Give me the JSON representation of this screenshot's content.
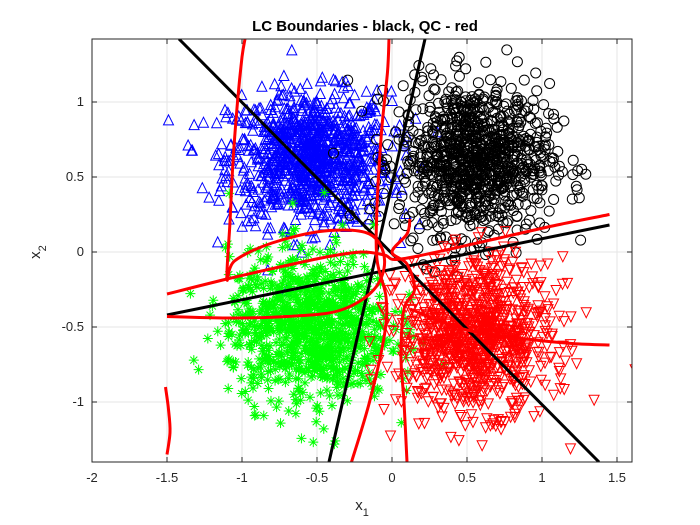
{
  "chart_data": {
    "type": "scatter",
    "title": "LC Boundaries - black, QC - red",
    "xlabel": {
      "base": "x",
      "sub": "1"
    },
    "ylabel": {
      "base": "x",
      "sub": "2"
    },
    "xlim": [
      -2,
      1.6
    ],
    "ylim": [
      -1.4,
      1.42
    ],
    "xticks": [
      -2,
      -1.5,
      -1,
      -0.5,
      0,
      0.5,
      1,
      1.5
    ],
    "xtick_labels": [
      "-2",
      "-1.5",
      "-1",
      "-0.5",
      "0",
      "0.5",
      "1",
      "1.5"
    ],
    "yticks": [
      -1,
      -0.5,
      0,
      0.5,
      1
    ],
    "ytick_labels": [
      "-1",
      "-0.5",
      "0",
      "0.5",
      "1"
    ],
    "grid": true,
    "series": [
      {
        "marker": "triangle-up",
        "color": "#0000ff",
        "center": [
          -0.55,
          0.62
        ],
        "spread": [
          0.27,
          0.22
        ],
        "n": 1000
      },
      {
        "marker": "circle",
        "color": "#000000",
        "center": [
          0.55,
          0.62
        ],
        "spread": [
          0.25,
          0.25
        ],
        "n": 1000
      },
      {
        "marker": "asterisk",
        "color": "#00ff00",
        "center": [
          -0.55,
          -0.5
        ],
        "spread": [
          0.27,
          0.25
        ],
        "n": 1000
      },
      {
        "marker": "triangle-down",
        "color": "#ff0000",
        "center": [
          0.55,
          -0.55
        ],
        "spread": [
          0.25,
          0.25
        ],
        "n": 1000
      }
    ],
    "lc_boundaries": {
      "color": "#000000",
      "lines": [
        [
          [
            -1.42,
            1.42
          ],
          [
            1.38,
            -1.4
          ]
        ],
        [
          [
            -0.42,
            -1.4
          ],
          [
            0.22,
            1.42
          ]
        ],
        [
          [
            -1.5,
            -0.42
          ],
          [
            1.45,
            0.18
          ]
        ]
      ]
    },
    "qc_boundaries": {
      "color": "#ff0000",
      "curves": [
        [
          [
            -1.5,
            -0.28
          ],
          [
            -1.1,
            -0.18
          ],
          [
            -0.75,
            -0.1
          ],
          [
            -0.42,
            -0.03
          ],
          [
            -0.2,
            0.0
          ],
          [
            -0.05,
            -0.02
          ],
          [
            0.03,
            -0.05
          ],
          [
            0.3,
            -0.0
          ],
          [
            0.7,
            0.09
          ],
          [
            1.1,
            0.18
          ],
          [
            1.45,
            0.25
          ]
        ],
        [
          [
            -1.5,
            -0.43
          ],
          [
            -1.1,
            -0.44
          ],
          [
            -0.7,
            -0.43
          ],
          [
            -0.35,
            -0.39
          ],
          [
            -0.12,
            -0.25
          ],
          [
            -0.05,
            -0.05
          ],
          [
            -0.15,
            0.12
          ],
          [
            -0.45,
            0.14
          ],
          [
            -0.8,
            0.06
          ],
          [
            -1.05,
            -0.06
          ],
          [
            -1.1,
            -0.18
          ],
          [
            -1.08,
            0.2
          ],
          [
            -1.06,
            0.6
          ],
          [
            -1.03,
            1.0
          ],
          [
            -1.0,
            1.3
          ],
          [
            -0.98,
            1.42
          ]
        ],
        [
          [
            -0.27,
            -1.4
          ],
          [
            -0.15,
            -1.0
          ],
          [
            -0.05,
            -0.55
          ],
          [
            -0.04,
            -0.3
          ],
          [
            -0.1,
            -0.05
          ],
          [
            -0.1,
            0.3
          ],
          [
            -0.07,
            0.8
          ],
          [
            -0.03,
            1.2
          ],
          [
            -0.02,
            1.42
          ]
        ],
        [
          [
            0.1,
            -1.4
          ],
          [
            0.08,
            -1.0
          ],
          [
            0.06,
            -0.7
          ],
          [
            0.08,
            -0.38
          ],
          [
            0.15,
            -0.25
          ],
          [
            0.1,
            -0.08
          ],
          [
            0.0,
            0.0
          ],
          [
            0.1,
            0.12
          ],
          [
            0.12,
            0.22
          ]
        ],
        [
          [
            0.12,
            -0.38
          ],
          [
            0.5,
            -0.52
          ],
          [
            0.9,
            -0.58
          ],
          [
            1.2,
            -0.61
          ],
          [
            1.45,
            -0.62
          ]
        ],
        [
          [
            -1.51,
            -0.9
          ],
          [
            -1.49,
            -1.05
          ],
          [
            -1.48,
            -1.2
          ],
          [
            -1.5,
            -1.35
          ]
        ]
      ]
    }
  }
}
